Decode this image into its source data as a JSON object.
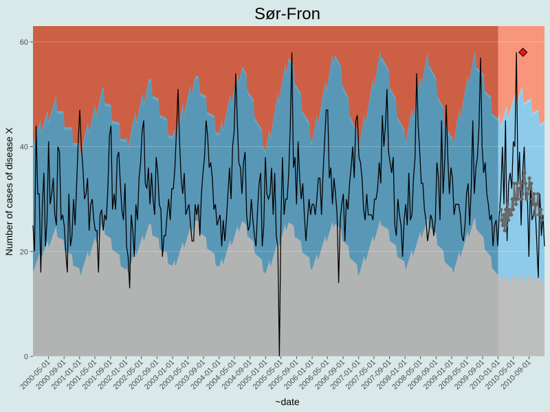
{
  "chart_data": {
    "type": "line",
    "title": "Sør-Fron",
    "xlabel": "~date",
    "ylabel": "Number of cases of disease X",
    "ylim": [
      0,
      63
    ],
    "y_ticks": [
      0,
      20,
      40,
      60
    ],
    "x_ticks": [
      "2000-05-01",
      "2000-09-01",
      "2001-01-01",
      "2001-05-01",
      "2001-09-01",
      "2002-01-01",
      "2002-05-01",
      "2002-09-01",
      "2003-01-01",
      "2003-05-01",
      "2003-09-01",
      "2004-01-01",
      "2004-05-01",
      "2004-09-01",
      "2005-01-01",
      "2005-05-01",
      "2005-09-01",
      "2006-01-01",
      "2006-05-01",
      "2006-09-01",
      "2007-01-01",
      "2007-05-01",
      "2007-09-01",
      "2008-01-01",
      "2008-05-01",
      "2008-09-01",
      "2009-01-01",
      "2009-05-01",
      "2009-09-01",
      "2010-01-01",
      "2010-05-01",
      "2010-09-01"
    ],
    "x_range": [
      "2000-01-01",
      "2010-12-31"
    ],
    "forecast_start": "2010-01-01",
    "baseline_x": [
      "2000-01-01",
      "2000-07-01",
      "2001-01-01",
      "2001-07-01",
      "2002-01-01",
      "2002-07-01",
      "2003-01-01",
      "2003-07-01",
      "2004-01-01",
      "2004-07-01",
      "2005-01-01",
      "2005-07-01",
      "2006-01-01",
      "2006-07-01",
      "2007-01-01",
      "2007-07-01",
      "2008-01-01",
      "2008-07-01",
      "2009-01-01",
      "2009-07-01",
      "2010-01-01",
      "2010-07-01",
      "2010-12-31"
    ],
    "baseline_upper": [
      41,
      48,
      39,
      50,
      40,
      52,
      41,
      53,
      42,
      55,
      39,
      57,
      41,
      58,
      40,
      58,
      41,
      57,
      40,
      57,
      44,
      50,
      44
    ],
    "baseline_lower": [
      17,
      24,
      16,
      25,
      16,
      25,
      17,
      26,
      17,
      26,
      16,
      26,
      17,
      26,
      16,
      26,
      17,
      26,
      16,
      26,
      15,
      15,
      15
    ],
    "series": [
      {
        "values": [
          25,
          20,
          44,
          31,
          31,
          16,
          29,
          35,
          21,
          26,
          41,
          29,
          31,
          34,
          27,
          25,
          40,
          39,
          26,
          27,
          25,
          20,
          16,
          31,
          21,
          23,
          30,
          25,
          33,
          41,
          47,
          40,
          36,
          30,
          31,
          34,
          24,
          29,
          30,
          26,
          24,
          24,
          16,
          27,
          28,
          24,
          27,
          26,
          32,
          42,
          44,
          28,
          31,
          28,
          38,
          39,
          33,
          28,
          26,
          33,
          21,
          19,
          13,
          27,
          24,
          19,
          29,
          26,
          34,
          37,
          43,
          45,
          33,
          32,
          36,
          29,
          35,
          30,
          27,
          38,
          35,
          29,
          28,
          19,
          23,
          23,
          27,
          30,
          26,
          32,
          32,
          36,
          43,
          51,
          41,
          34,
          31,
          35,
          27,
          28,
          29,
          25,
          22,
          22,
          29,
          27,
          29,
          23,
          31,
          35,
          38,
          45,
          42,
          36,
          37,
          34,
          28,
          29,
          25,
          26,
          27,
          21,
          26,
          22,
          26,
          31,
          36,
          30,
          40,
          43,
          54,
          45,
          37,
          36,
          31,
          37,
          39,
          27,
          24,
          25,
          30,
          26,
          23,
          21,
          28,
          33,
          35,
          21,
          25,
          38,
          31,
          30,
          31,
          36,
          27,
          35,
          23,
          21,
          0,
          26,
          38,
          27,
          30,
          30,
          35,
          44,
          58,
          36,
          38,
          29,
          41,
          34,
          30,
          33,
          27,
          22,
          26,
          30,
          27,
          29,
          29,
          27,
          30,
          34,
          34,
          27,
          35,
          41,
          47,
          47,
          34,
          36,
          29,
          34,
          31,
          27,
          14,
          26,
          29,
          31,
          22,
          30,
          28,
          33,
          36,
          40,
          34,
          45,
          46,
          38,
          37,
          34,
          28,
          26,
          31,
          27,
          27,
          27,
          26,
          30,
          30,
          32,
          37,
          33,
          46,
          40,
          44,
          51,
          39,
          37,
          35,
          38,
          25,
          23,
          30,
          27,
          25,
          19,
          26,
          29,
          25,
          35,
          26,
          27,
          34,
          38,
          54,
          44,
          39,
          33,
          33,
          28,
          26,
          22,
          24,
          27,
          26,
          23,
          26,
          37,
          34,
          26,
          45,
          31,
          37,
          48,
          38,
          31,
          36,
          34,
          27,
          29,
          29,
          29,
          27,
          23,
          22,
          25,
          31,
          33,
          25,
          32,
          45,
          31,
          36,
          38,
          44,
          57,
          40,
          35,
          37,
          31,
          29,
          26,
          27,
          21,
          25,
          26,
          21,
          27,
          31,
          40,
          29,
          45,
          22,
          33,
          35,
          32,
          41,
          40,
          58,
          33,
          39,
          25,
          35,
          40,
          30,
          31,
          19,
          33,
          26,
          27,
          29,
          22,
          15,
          31,
          23,
          27,
          21
        ]
      },
      {
        "values": [
          28,
          26,
          25,
          27,
          24,
          28,
          25,
          29,
          26,
          28,
          27,
          27,
          30,
          28,
          33,
          30,
          29,
          33,
          30,
          32,
          32,
          33,
          30,
          31,
          34,
          35,
          33,
          30,
          31,
          32,
          34,
          32,
          33,
          30,
          29,
          31,
          27,
          29,
          29,
          31,
          27,
          28,
          28,
          26
        ]
      }
    ],
    "highlight_point": {
      "x": "2010-07-15",
      "y": 58
    }
  }
}
